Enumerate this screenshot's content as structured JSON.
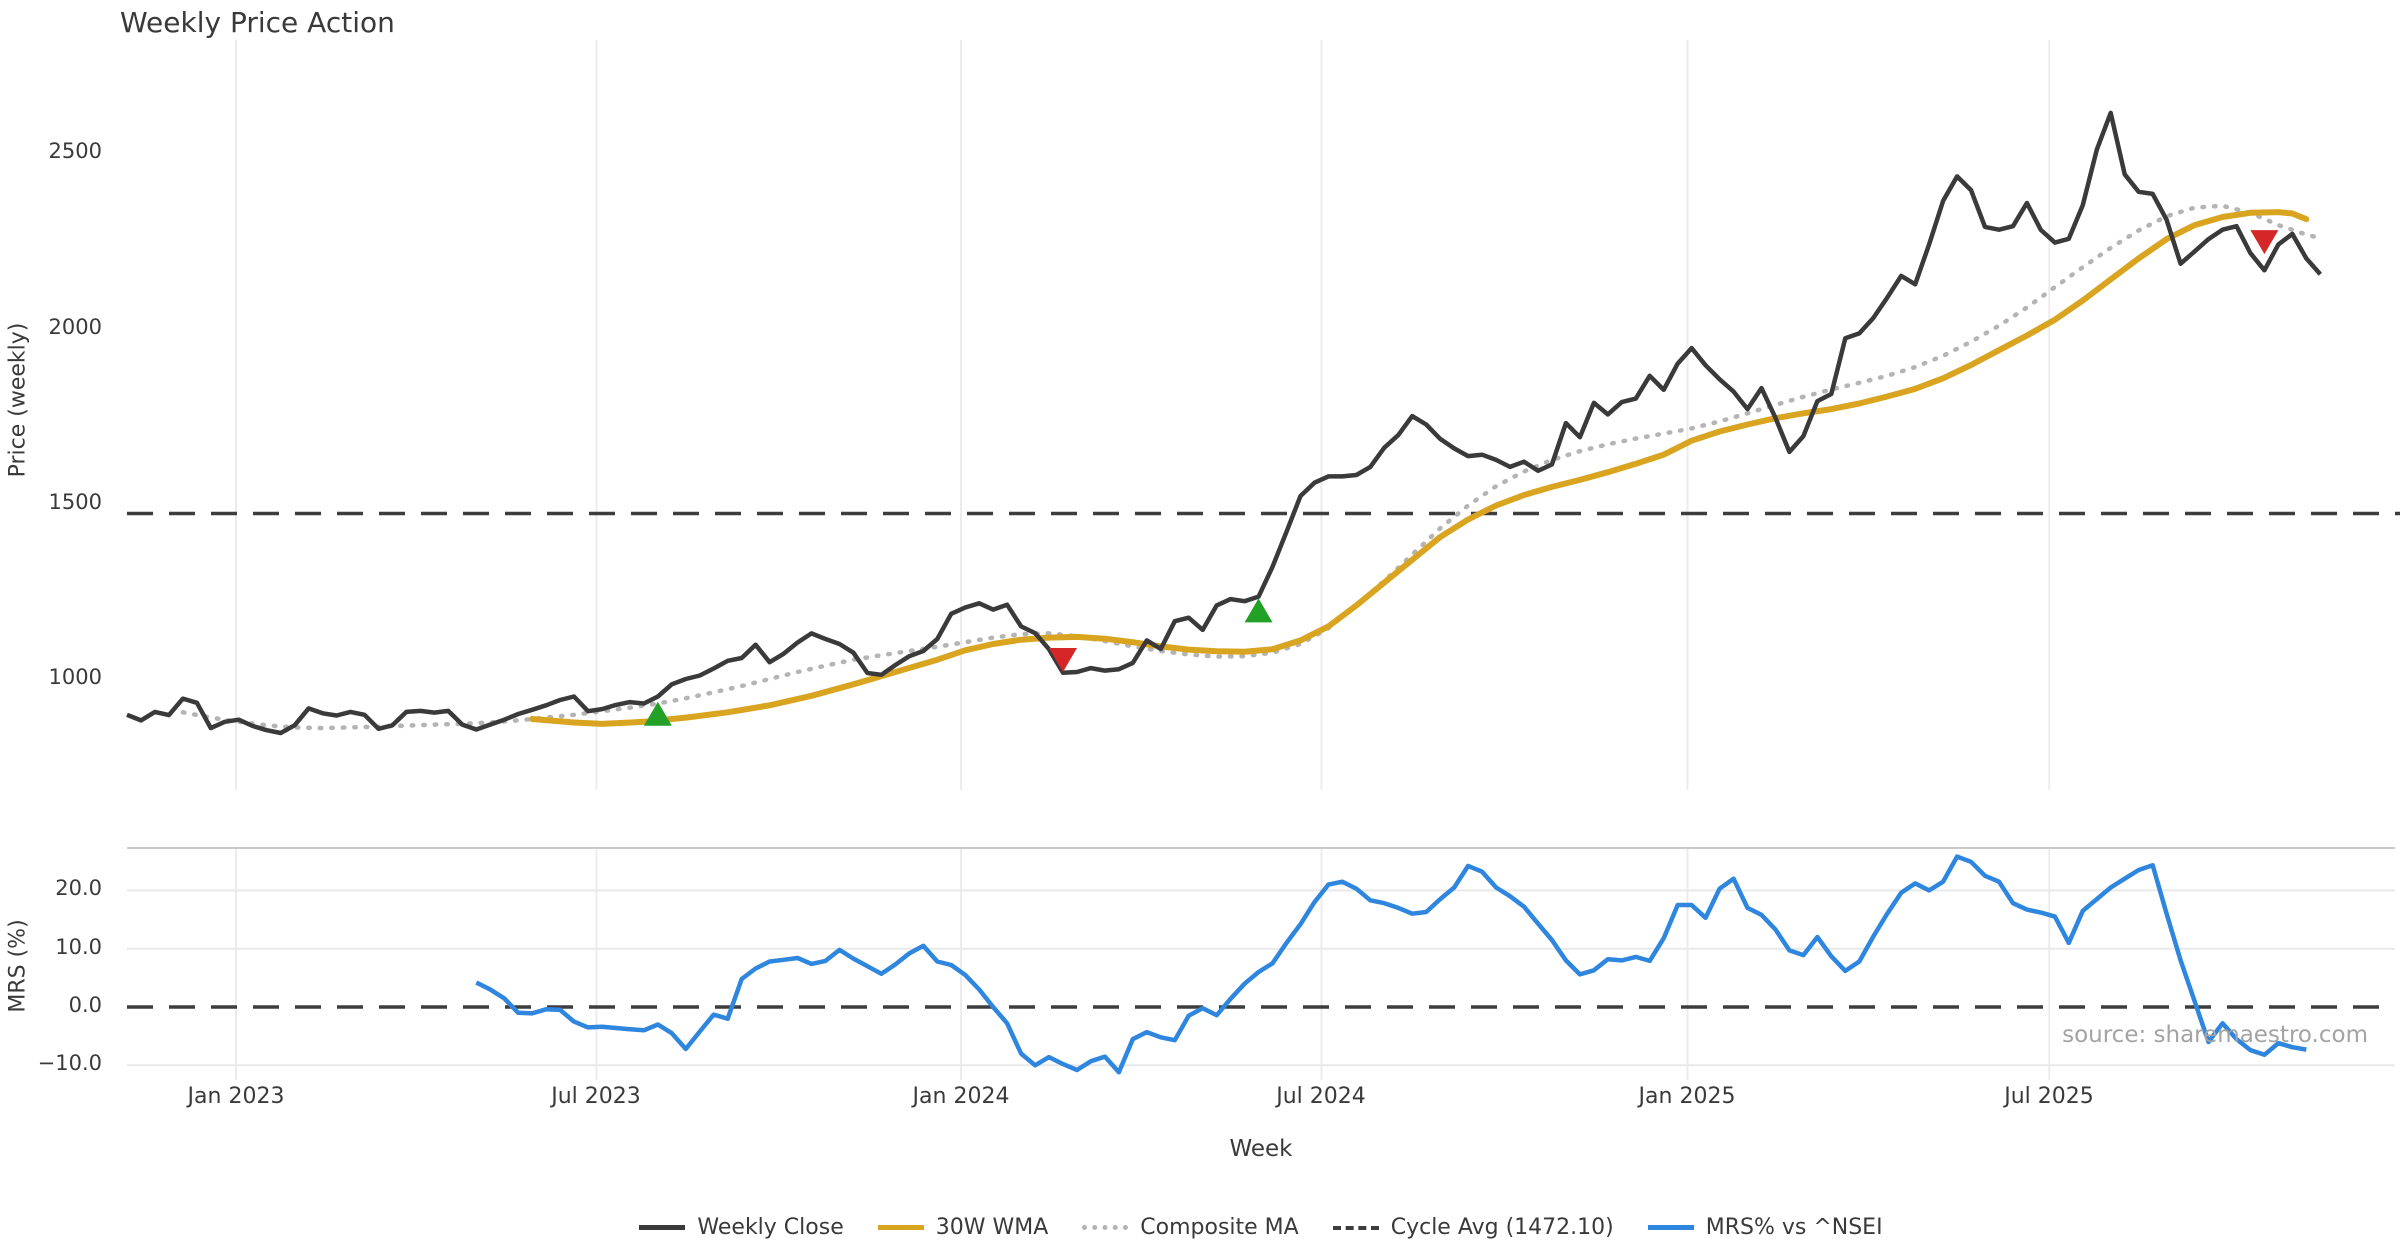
{
  "title": "Weekly Price Action",
  "source_note": "source: sharemaestro.com",
  "colors": {
    "weekly_close": "#3a3a3a",
    "wma30": "#d9a420",
    "composite_ma": "#b4b4b4",
    "cycle_avg": "#3d3d3d",
    "mrs": "#2e86de",
    "buy_marker": "#23a127",
    "sell_marker": "#d62728",
    "gridline": "#ececec",
    "mrs_gridline": "#e9e9e9",
    "panel_border": "#c9c9c9",
    "tick_text": "#3a3a3a",
    "source_text": "#a3a3a3"
  },
  "chart_data": {
    "type": "line",
    "xlabel": "Week",
    "x_unit": "week_index",
    "x_tick_labels": [
      "Jan 2023",
      "Jul 2023",
      "Jan 2024",
      "Jul 2024",
      "Jan 2025",
      "Jul 2025"
    ],
    "x_tick_weeks": [
      7.8,
      33.6,
      59.7,
      85.5,
      111.7,
      137.6
    ],
    "legend": [
      {
        "label": "Weekly Close",
        "style": "solid",
        "color": "#3a3a3a"
      },
      {
        "label": "30W WMA",
        "style": "solid",
        "color": "#d9a420"
      },
      {
        "label": "Composite MA",
        "style": "dotted",
        "color": "#b4b4b4"
      },
      {
        "label": "Cycle Avg (1472.10)",
        "style": "dashed",
        "color": "#3d3d3d"
      },
      {
        "label": "MRS% vs ^NSEI",
        "style": "solid",
        "color": "#2e86de"
      }
    ],
    "panels": [
      {
        "ylabel": "Price (weekly)",
        "yticks": [
          "1000",
          "1500",
          "2000",
          "2500"
        ],
        "ytick_values": [
          1000,
          1500,
          2000,
          2500
        ],
        "ylim": [
          820,
          2680
        ],
        "cycle_avg": 1472.1,
        "grid": "vertical-only",
        "series": [
          {
            "name": "Weekly Close",
            "start_week": 0,
            "values": [
              898,
              882,
              906,
              897,
              944,
              932,
              860,
              878,
              884,
              866,
              854,
              846,
              868,
              916,
              902,
              896,
              906,
              898,
              858,
              868,
              906,
              909,
              904,
              909,
              870,
              856,
              870,
              884,
              900,
              912,
              925,
              940,
              950,
              908,
              914,
              926,
              934,
              930,
              950,
              985,
              1000,
              1010,
              1030,
              1052,
              1060,
              1098,
              1048,
              1072,
              1104,
              1130,
              1114,
              1100,
              1075,
              1017,
              1012,
              1040,
              1065,
              1080,
              1114,
              1186,
              1204,
              1216,
              1198,
              1212,
              1150,
              1131,
              1085,
              1018,
              1020,
              1031,
              1024,
              1028,
              1046,
              1110,
              1086,
              1165,
              1175,
              1140,
              1210,
              1228,
              1222,
              1235,
              1320,
              1420,
              1522,
              1560,
              1578,
              1578,
              1582,
              1605,
              1660,
              1696,
              1750,
              1726,
              1685,
              1658,
              1636,
              1640,
              1625,
              1605,
              1620,
              1594,
              1612,
              1730,
              1690,
              1788,
              1755,
              1790,
              1800,
              1865,
              1825,
              1900,
              1944,
              1895,
              1855,
              1820,
              1770,
              1830,
              1745,
              1648,
              1693,
              1793,
              1813,
              1972,
              1986,
              2030,
              2088,
              2150,
              2126,
              2240,
              2364,
              2434,
              2395,
              2290,
              2282,
              2292,
              2358,
              2281,
              2245,
              2256,
              2352,
              2510,
              2615,
              2440,
              2390,
              2384,
              2310,
              2185,
              2220,
              2255,
              2282,
              2292,
              2215,
              2166,
              2240,
              2270,
              2200,
              2155
            ]
          },
          {
            "name": "30W WMA",
            "points": [
              [
                29,
                886
              ],
              [
                32,
                876
              ],
              [
                34,
                872
              ],
              [
                37,
                878
              ],
              [
                40,
                890
              ],
              [
                43,
                905
              ],
              [
                46,
                925
              ],
              [
                49,
                952
              ],
              [
                52,
                985
              ],
              [
                55,
                1020
              ],
              [
                58,
                1055
              ],
              [
                60,
                1082
              ],
              [
                62,
                1100
              ],
              [
                64,
                1112
              ],
              [
                66,
                1118
              ],
              [
                68,
                1120
              ],
              [
                70,
                1115
              ],
              [
                72,
                1105
              ],
              [
                74,
                1093
              ],
              [
                76,
                1084
              ],
              [
                78,
                1079
              ],
              [
                80,
                1078
              ],
              [
                82,
                1085
              ],
              [
                84,
                1110
              ],
              [
                86,
                1150
              ],
              [
                88,
                1210
              ],
              [
                90,
                1275
              ],
              [
                92,
                1340
              ],
              [
                94,
                1405
              ],
              [
                96,
                1455
              ],
              [
                98,
                1495
              ],
              [
                100,
                1525
              ],
              [
                102,
                1548
              ],
              [
                104,
                1568
              ],
              [
                106,
                1590
              ],
              [
                108,
                1614
              ],
              [
                110,
                1640
              ],
              [
                112,
                1680
              ],
              [
                114,
                1706
              ],
              [
                116,
                1726
              ],
              [
                118,
                1744
              ],
              [
                120,
                1758
              ],
              [
                122,
                1770
              ],
              [
                124,
                1786
              ],
              [
                126,
                1806
              ],
              [
                128,
                1828
              ],
              [
                130,
                1858
              ],
              [
                132,
                1896
              ],
              [
                134,
                1938
              ],
              [
                136,
                1980
              ],
              [
                138,
                2025
              ],
              [
                140,
                2080
              ],
              [
                142,
                2140
              ],
              [
                144,
                2200
              ],
              [
                146,
                2255
              ],
              [
                148,
                2295
              ],
              [
                150,
                2318
              ],
              [
                152,
                2330
              ],
              [
                154,
                2332
              ],
              [
                155,
                2328
              ],
              [
                156,
                2312
              ]
            ]
          },
          {
            "name": "Composite MA",
            "points": [
              [
                4,
                905
              ],
              [
                6,
                890
              ],
              [
                8,
                878
              ],
              [
                10,
                868
              ],
              [
                12,
                862
              ],
              [
                14,
                860
              ],
              [
                16,
                862
              ],
              [
                18,
                864
              ],
              [
                20,
                867
              ],
              [
                22,
                870
              ],
              [
                24,
                872
              ],
              [
                26,
                876
              ],
              [
                28,
                882
              ],
              [
                30,
                890
              ],
              [
                32,
                898
              ],
              [
                34,
                908
              ],
              [
                36,
                918
              ],
              [
                38,
                930
              ],
              [
                40,
                945
              ],
              [
                42,
                962
              ],
              [
                44,
                980
              ],
              [
                46,
                1000
              ],
              [
                48,
                1020
              ],
              [
                50,
                1038
              ],
              [
                52,
                1055
              ],
              [
                54,
                1068
              ],
              [
                56,
                1080
              ],
              [
                58,
                1092
              ],
              [
                60,
                1105
              ],
              [
                62,
                1118
              ],
              [
                64,
                1128
              ],
              [
                66,
                1130
              ],
              [
                68,
                1122
              ],
              [
                70,
                1108
              ],
              [
                72,
                1093
              ],
              [
                74,
                1080
              ],
              [
                76,
                1070
              ],
              [
                78,
                1064
              ],
              [
                80,
                1065
              ],
              [
                82,
                1075
              ],
              [
                84,
                1100
              ],
              [
                86,
                1145
              ],
              [
                88,
                1210
              ],
              [
                90,
                1280
              ],
              [
                92,
                1355
              ],
              [
                94,
                1430
              ],
              [
                96,
                1495
              ],
              [
                98,
                1550
              ],
              [
                100,
                1592
              ],
              [
                102,
                1625
              ],
              [
                104,
                1650
              ],
              [
                106,
                1670
              ],
              [
                108,
                1686
              ],
              [
                110,
                1700
              ],
              [
                112,
                1715
              ],
              [
                114,
                1735
              ],
              [
                116,
                1758
              ],
              [
                118,
                1782
              ],
              [
                120,
                1805
              ],
              [
                122,
                1826
              ],
              [
                124,
                1845
              ],
              [
                126,
                1865
              ],
              [
                128,
                1890
              ],
              [
                130,
                1922
              ],
              [
                132,
                1962
              ],
              [
                134,
                2008
              ],
              [
                136,
                2060
              ],
              [
                138,
                2118
              ],
              [
                140,
                2175
              ],
              [
                142,
                2230
              ],
              [
                144,
                2280
              ],
              [
                146,
                2320
              ],
              [
                148,
                2345
              ],
              [
                150,
                2350
              ],
              [
                152,
                2330
              ],
              [
                154,
                2295
              ],
              [
                156,
                2268
              ],
              [
                157,
                2258
              ]
            ]
          }
        ],
        "markers": [
          {
            "type": "buy",
            "week": 38,
            "price": 895
          },
          {
            "type": "sell",
            "week": 67,
            "price": 1060
          },
          {
            "type": "buy",
            "week": 81,
            "price": 1190
          },
          {
            "type": "sell",
            "week": 153,
            "price": 2252
          }
        ]
      },
      {
        "ylabel": "MRS (%)",
        "yticks": [
          "20.0",
          "10.0",
          "0.0",
          "−10.0"
        ],
        "ytick_values": [
          20,
          10,
          0,
          -10
        ],
        "ylim": [
          -12.2,
          27.3
        ],
        "zero_line": 0,
        "grid": "both",
        "series": [
          {
            "name": "MRS% vs ^NSEI",
            "start_week": 25,
            "values": [
              4.2,
              3.0,
              1.5,
              -1.0,
              -1.1,
              -0.4,
              -0.5,
              -2.5,
              -3.5,
              -3.4,
              -3.6,
              -3.8,
              -4.0,
              -3.0,
              -4.5,
              -7.2,
              -4.2,
              -1.3,
              -2.0,
              4.8,
              6.6,
              7.8,
              8.1,
              8.4,
              7.4,
              7.9,
              9.8,
              8.3,
              7.0,
              5.7,
              7.3,
              9.2,
              10.5,
              7.8,
              7.2,
              5.5,
              3.0,
              0.0,
              -2.8,
              -8.0,
              -10.0,
              -8.6,
              -9.8,
              -10.8,
              -9.3,
              -8.5,
              -11.2,
              -5.5,
              -4.3,
              -5.2,
              -5.7,
              -1.5,
              -0.2,
              -1.4,
              1.4,
              4.0,
              6.0,
              7.5,
              11.0,
              14.2,
              18.0,
              21.0,
              21.5,
              20.3,
              18.3,
              17.8,
              17.0,
              16.0,
              16.3,
              18.5,
              20.5,
              24.2,
              23.2,
              20.5,
              19.0,
              17.2,
              14.3,
              11.5,
              8.0,
              5.6,
              6.3,
              8.2,
              8.0,
              8.6,
              7.9,
              11.8,
              17.5,
              17.5,
              15.3,
              20.3,
              22.0,
              17.0,
              15.8,
              13.3,
              9.7,
              8.9,
              12.0,
              8.7,
              6.2,
              7.8,
              12.1,
              16.0,
              19.6,
              21.2,
              20.0,
              21.5,
              25.8,
              24.9,
              22.5,
              21.5,
              17.8,
              16.7,
              16.2,
              15.5,
              11.0,
              16.5,
              18.5,
              20.5,
              22.0,
              23.5,
              24.3,
              16.0,
              8.0,
              1.0,
              -6.0,
              -2.8,
              -5.5,
              -7.4,
              -8.2,
              -6.2,
              -6.9,
              -7.3
            ]
          }
        ]
      }
    ]
  }
}
